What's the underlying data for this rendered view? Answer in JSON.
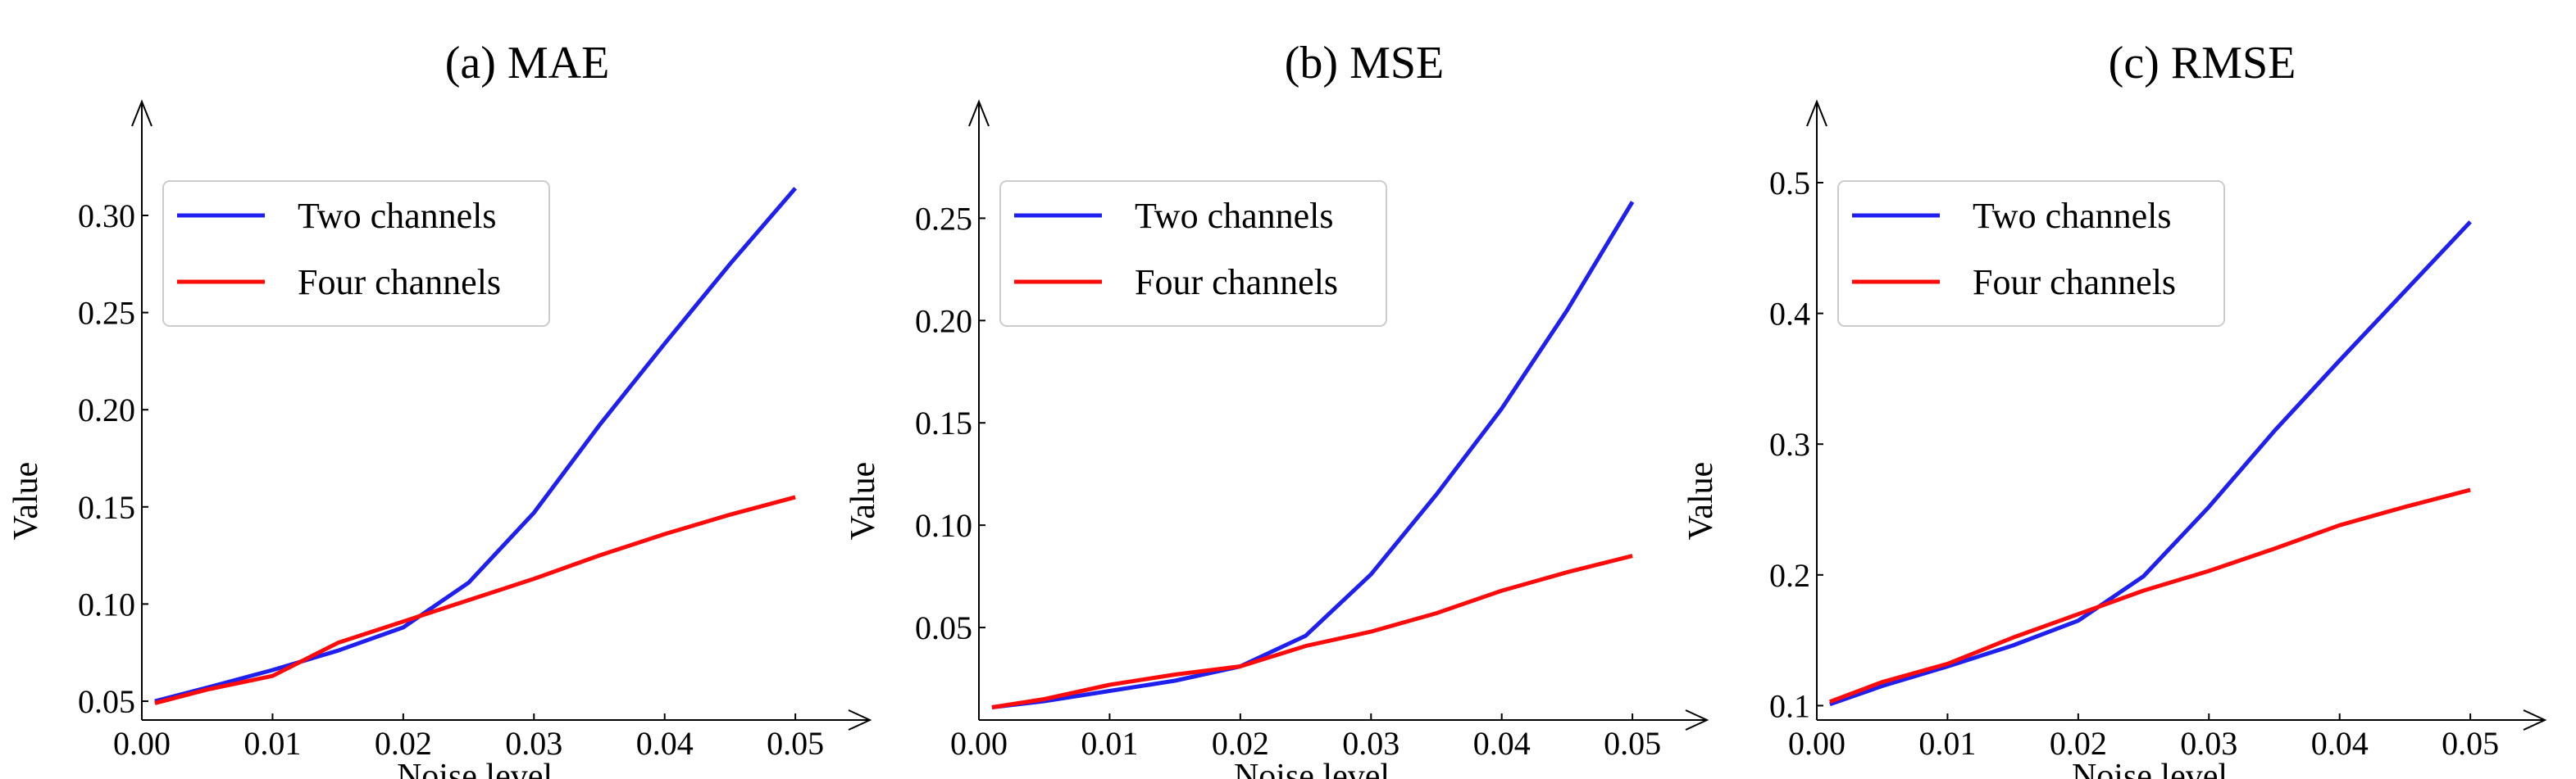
{
  "colors": {
    "two": "#1f1fef",
    "four": "#ff0a0a",
    "axis": "#000000",
    "legend_border": "#cccccc"
  },
  "chart_data": [
    {
      "type": "line",
      "title": "(a) MAE",
      "xlabel": "Noise level",
      "ylabel": "Value",
      "xlim": [
        0,
        0.0557
      ],
      "ylim": [
        0.0403,
        0.3586
      ],
      "xticks": [
        0,
        0.01,
        0.02,
        0.03,
        0.04,
        0.05
      ],
      "xtick_labels": [
        "0.00",
        "0.01",
        "0.02",
        "0.03",
        "0.04",
        "0.05"
      ],
      "yticks": [
        0.05,
        0.1,
        0.15,
        0.2,
        0.25,
        0.3
      ],
      "ytick_labels": [
        "0.05",
        "0.10",
        "0.15",
        "0.20",
        "0.25",
        "0.30"
      ],
      "legend_position": "upper-left",
      "x": [
        0.001,
        0.005,
        0.01,
        0.015,
        0.02,
        0.025,
        0.03,
        0.035,
        0.04,
        0.045,
        0.05
      ],
      "series": [
        {
          "name": "Two channels",
          "color": "#1f1fef",
          "values": [
            0.05,
            0.057,
            0.066,
            0.076,
            0.088,
            0.111,
            0.147,
            0.192,
            0.234,
            0.275,
            0.314
          ]
        },
        {
          "name": "Four channels",
          "color": "#ff0a0a",
          "values": [
            0.049,
            0.056,
            0.063,
            0.08,
            0.091,
            0.102,
            0.113,
            0.125,
            0.136,
            0.146,
            0.155
          ]
        }
      ]
    },
    {
      "type": "line",
      "title": "(b) MSE",
      "xlabel": "Noise level",
      "ylabel": "Value",
      "xlim": [
        0,
        0.0557
      ],
      "ylim": [
        0.0048,
        0.307
      ],
      "xticks": [
        0,
        0.01,
        0.02,
        0.03,
        0.04,
        0.05
      ],
      "xtick_labels": [
        "0.00",
        "0.01",
        "0.02",
        "0.03",
        "0.04",
        "0.05"
      ],
      "yticks": [
        0.05,
        0.1,
        0.15,
        0.2,
        0.25
      ],
      "ytick_labels": [
        "0.05",
        "0.10",
        "0.15",
        "0.20",
        "0.25"
      ],
      "legend_position": "upper-left",
      "x": [
        0.001,
        0.005,
        0.01,
        0.015,
        0.02,
        0.025,
        0.03,
        0.035,
        0.04,
        0.045,
        0.05
      ],
      "series": [
        {
          "name": "Two channels",
          "color": "#1f1fef",
          "values": [
            0.011,
            0.014,
            0.019,
            0.024,
            0.031,
            0.046,
            0.076,
            0.115,
            0.157,
            0.205,
            0.258
          ]
        },
        {
          "name": "Four channels",
          "color": "#ff0a0a",
          "values": [
            0.011,
            0.015,
            0.022,
            0.027,
            0.031,
            0.041,
            0.048,
            0.057,
            0.068,
            0.077,
            0.085
          ]
        }
      ]
    },
    {
      "type": "line",
      "title": "(c) RMSE",
      "xlabel": "Noise level",
      "ylabel": "Value",
      "xlim": [
        0,
        0.0557
      ],
      "ylim": [
        0.089,
        0.562
      ],
      "xticks": [
        0,
        0.01,
        0.02,
        0.03,
        0.04,
        0.05
      ],
      "xtick_labels": [
        "0.00",
        "0.01",
        "0.02",
        "0.03",
        "0.04",
        "0.05"
      ],
      "yticks": [
        0.1,
        0.2,
        0.3,
        0.4,
        0.5
      ],
      "ytick_labels": [
        "0.1",
        "0.2",
        "0.3",
        "0.4",
        "0.5"
      ],
      "legend_position": "upper-left",
      "x": [
        0.001,
        0.005,
        0.01,
        0.015,
        0.02,
        0.025,
        0.03,
        0.035,
        0.04,
        0.045,
        0.05
      ],
      "series": [
        {
          "name": "Two channels",
          "color": "#1f1fef",
          "values": [
            0.101,
            0.115,
            0.13,
            0.146,
            0.165,
            0.199,
            0.252,
            0.31,
            0.364,
            0.417,
            0.47
          ]
        },
        {
          "name": "Four channels",
          "color": "#ff0a0a",
          "values": [
            0.103,
            0.118,
            0.132,
            0.152,
            0.17,
            0.188,
            0.203,
            0.22,
            0.238,
            0.252,
            0.265
          ]
        }
      ]
    }
  ]
}
